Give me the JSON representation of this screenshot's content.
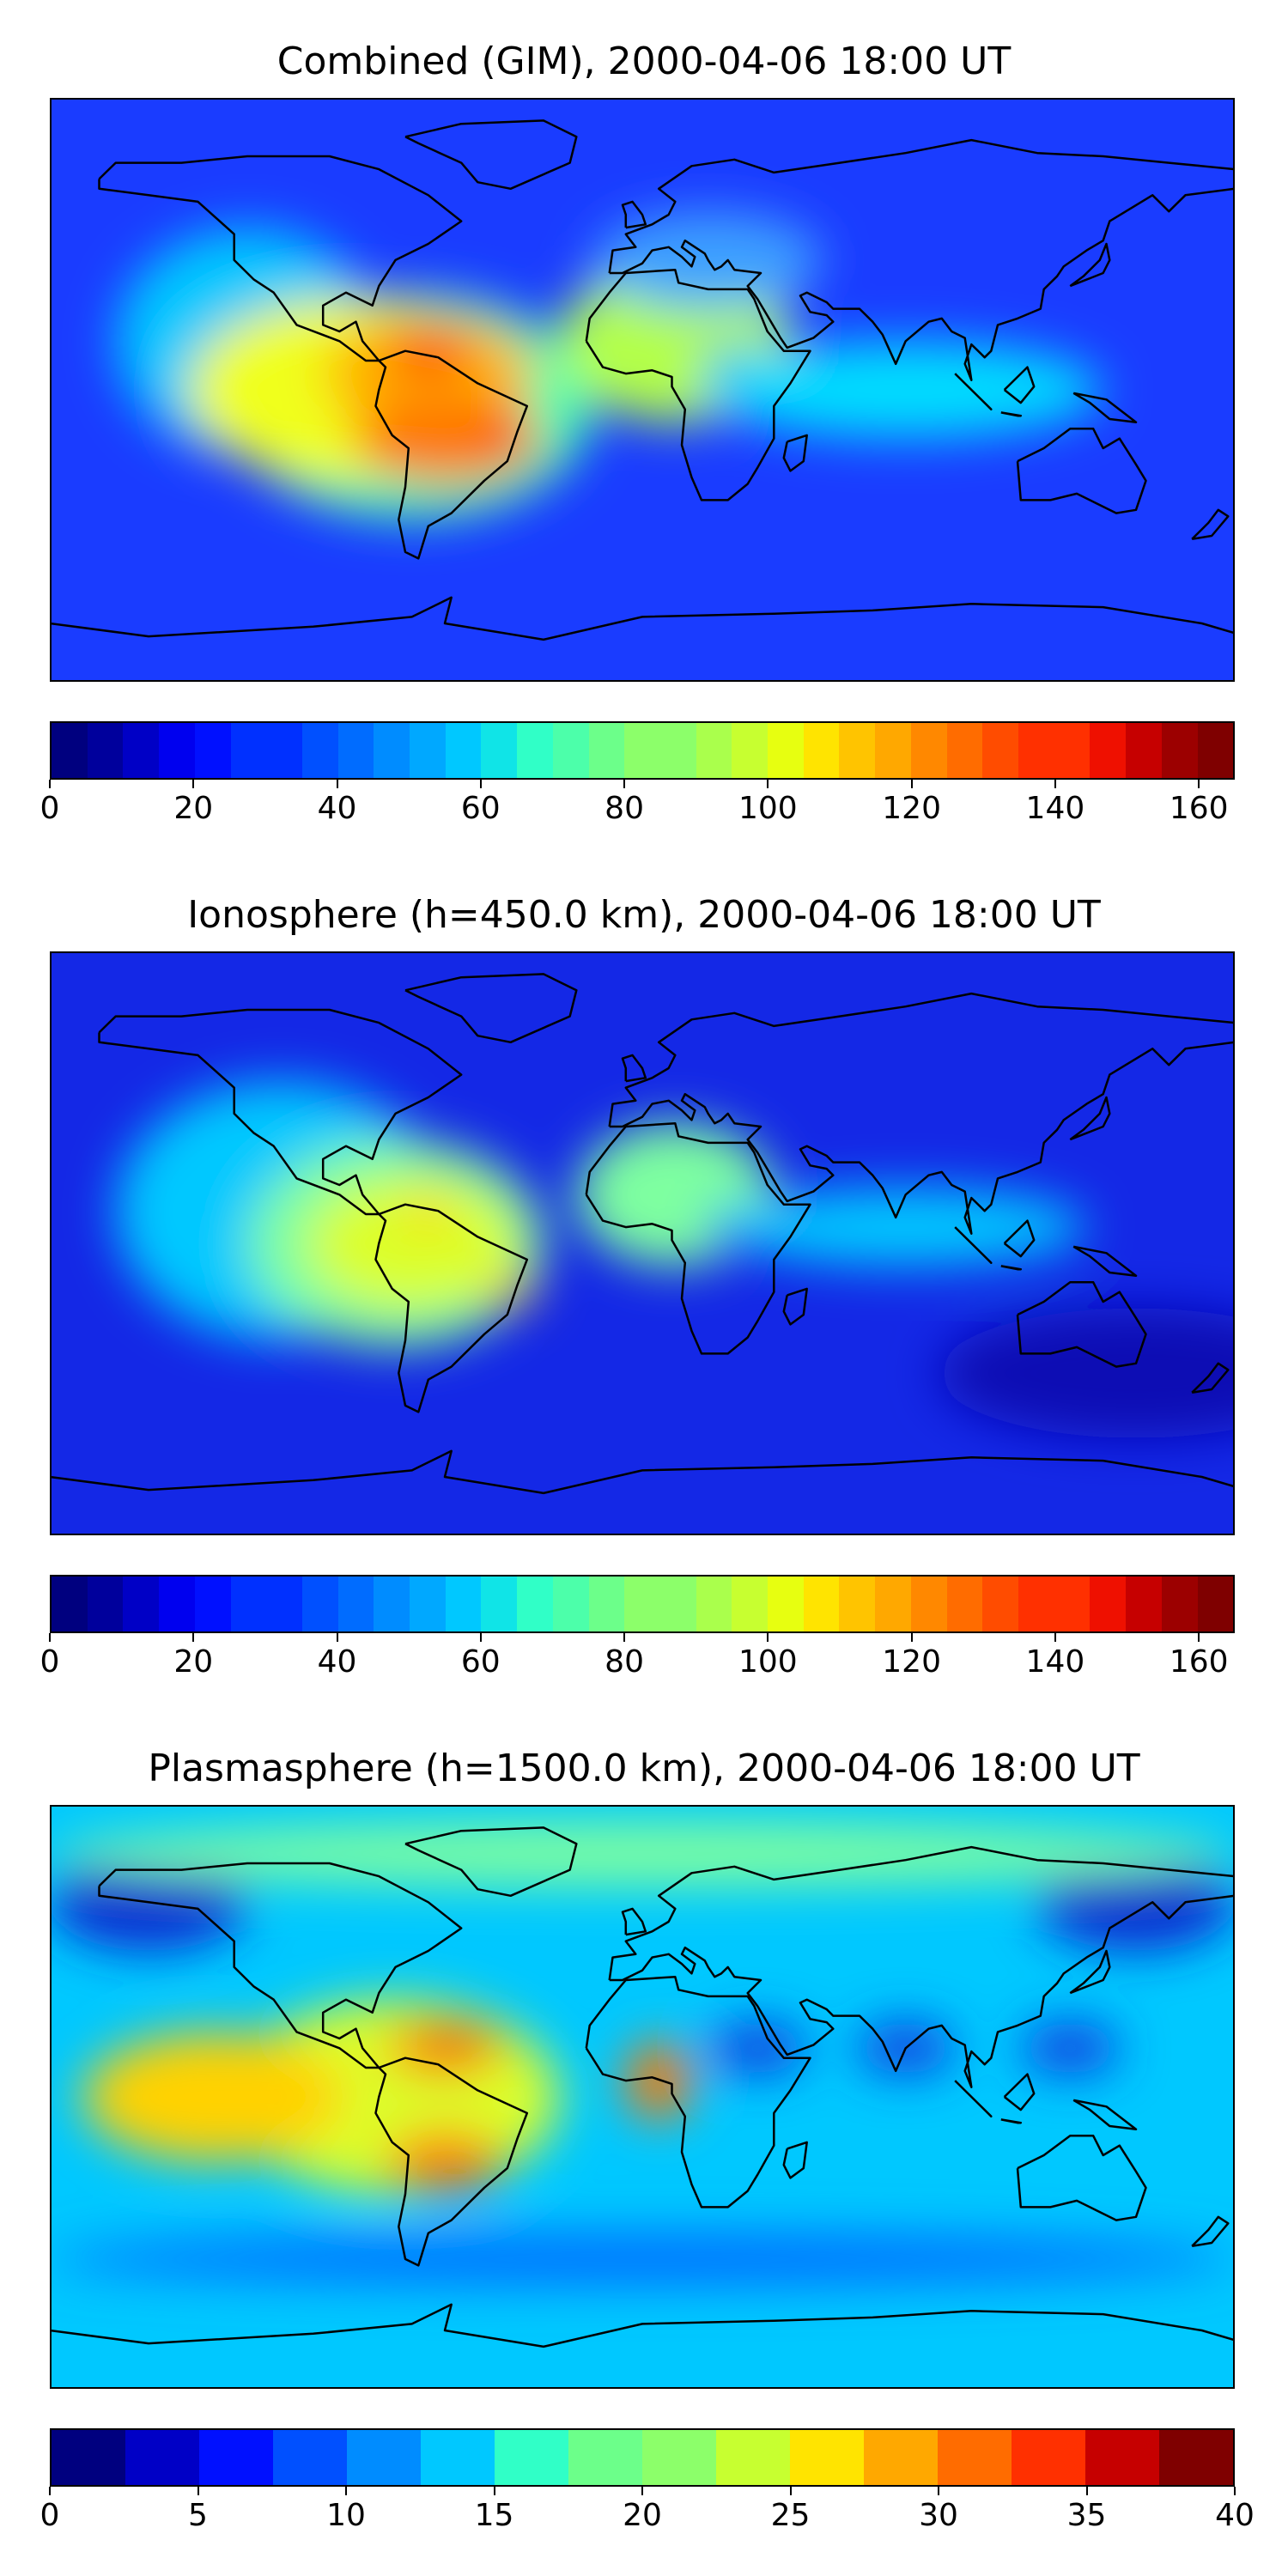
{
  "panels": [
    {
      "title": "Combined (GIM), 2000-04-06 18:00 UT",
      "colorbar": {
        "min": 0,
        "max": 165,
        "step": 5,
        "ticks": [
          "0",
          "20",
          "40",
          "60",
          "80",
          "100",
          "120",
          "140",
          "160"
        ],
        "tick_values": [
          0,
          20,
          40,
          60,
          80,
          100,
          120,
          140,
          160
        ]
      },
      "background_color": "#1a3cff",
      "blobs": [
        {
          "lon": -120,
          "lat": 15,
          "rx": 40,
          "ry": 35,
          "color": "#00c8ff"
        },
        {
          "lon": -70,
          "lat": -5,
          "rx": 55,
          "ry": 35,
          "color": "#3cffb4"
        },
        {
          "lon": -90,
          "lat": 0,
          "rx": 48,
          "ry": 28,
          "color": "#f0ff1e"
        },
        {
          "lon": -65,
          "lat": 5,
          "rx": 32,
          "ry": 18,
          "color": "#ffb400"
        },
        {
          "lon": -60,
          "lat": -15,
          "rx": 28,
          "ry": 14,
          "color": "#ff7800"
        },
        {
          "lon": -65,
          "lat": 12,
          "rx": 14,
          "ry": 7,
          "color": "#ff4000"
        },
        {
          "lon": -40,
          "lat": -15,
          "rx": 10,
          "ry": 5,
          "color": "#ff4000"
        },
        {
          "lon": 10,
          "lat": 15,
          "rx": 35,
          "ry": 25,
          "color": "#b4ff4a"
        },
        {
          "lon": 30,
          "lat": 5,
          "rx": 12,
          "ry": 8,
          "color": "#0090ff"
        },
        {
          "lon": 80,
          "lat": 0,
          "rx": 60,
          "ry": 15,
          "color": "#00dcff"
        },
        {
          "lon": 20,
          "lat": 40,
          "rx": 35,
          "ry": 15,
          "color": "#3ca0ff"
        }
      ]
    },
    {
      "title": "Ionosphere  (h=450.0 km), 2000-04-06 18:00 UT",
      "colorbar": {
        "min": 0,
        "max": 165,
        "step": 5,
        "ticks": [
          "0",
          "20",
          "40",
          "60",
          "80",
          "100",
          "120",
          "140",
          "160"
        ],
        "tick_values": [
          0,
          20,
          40,
          60,
          80,
          100,
          120,
          140,
          160
        ]
      },
      "background_color": "#1428e6",
      "blobs": [
        {
          "lon": -110,
          "lat": 10,
          "rx": 50,
          "ry": 40,
          "color": "#00c8ff"
        },
        {
          "lon": -75,
          "lat": 0,
          "rx": 45,
          "ry": 32,
          "color": "#7effa0"
        },
        {
          "lon": -70,
          "lat": 0,
          "rx": 32,
          "ry": 20,
          "color": "#dcff2a"
        },
        {
          "lon": -65,
          "lat": 10,
          "rx": 8,
          "ry": 5,
          "color": "#ffd200"
        },
        {
          "lon": -40,
          "lat": -15,
          "rx": 8,
          "ry": 4,
          "color": "#ffb400"
        },
        {
          "lon": 10,
          "lat": 15,
          "rx": 30,
          "ry": 22,
          "color": "#7effa0"
        },
        {
          "lon": 30,
          "lat": 5,
          "rx": 10,
          "ry": 7,
          "color": "#0064ff"
        },
        {
          "lon": 80,
          "lat": 5,
          "rx": 55,
          "ry": 12,
          "color": "#00c8ff"
        },
        {
          "lon": 150,
          "lat": -40,
          "rx": 60,
          "ry": 20,
          "color": "#0a0ab4"
        }
      ]
    },
    {
      "title": "Plasmasphere (h=1500.0 km), 2000-04-06 18:00 UT",
      "colorbar": {
        "min": 0,
        "max": 40,
        "step": 2.5,
        "ticks": [
          "0",
          "5",
          "10",
          "15",
          "20",
          "25",
          "30",
          "35",
          "40"
        ],
        "tick_values": [
          0,
          5,
          10,
          15,
          20,
          25,
          30,
          35,
          40
        ]
      },
      "background_color": "#00c8ff",
      "blobs": [
        {
          "lon": -150,
          "lat": 60,
          "rx": 30,
          "ry": 15,
          "color": "#0a2ad0"
        },
        {
          "lon": 150,
          "lat": 60,
          "rx": 30,
          "ry": 15,
          "color": "#0a2ad0"
        },
        {
          "lon": 0,
          "lat": 75,
          "rx": 180,
          "ry": 10,
          "color": "#7effa0"
        },
        {
          "lon": -75,
          "lat": 0,
          "rx": 50,
          "ry": 30,
          "color": "#dcff2a"
        },
        {
          "lon": -60,
          "lat": 15,
          "rx": 18,
          "ry": 8,
          "color": "#ff7800"
        },
        {
          "lon": -58,
          "lat": 17,
          "rx": 8,
          "ry": 4,
          "color": "#e00000"
        },
        {
          "lon": -60,
          "lat": -20,
          "rx": 18,
          "ry": 9,
          "color": "#ff7800"
        },
        {
          "lon": -130,
          "lat": 0,
          "rx": 40,
          "ry": 20,
          "color": "#ffd200"
        },
        {
          "lon": 5,
          "lat": 5,
          "rx": 10,
          "ry": 12,
          "color": "#ff7800"
        },
        {
          "lon": 35,
          "lat": 15,
          "rx": 15,
          "ry": 8,
          "color": "#1040e0"
        },
        {
          "lon": 80,
          "lat": 15,
          "rx": 15,
          "ry": 8,
          "color": "#1040e0"
        },
        {
          "lon": 130,
          "lat": 15,
          "rx": 15,
          "ry": 8,
          "color": "#1040e0"
        },
        {
          "lon": 0,
          "lat": -50,
          "rx": 180,
          "ry": 8,
          "color": "#0070ff"
        }
      ]
    }
  ],
  "colormap": [
    "#00007f",
    "#00009c",
    "#0000c6",
    "#0000ef",
    "#0010ff",
    "#0030ff",
    "#0050ff",
    "#006cff",
    "#008cff",
    "#00a8ff",
    "#00c8ff",
    "#10e4e7",
    "#30ffc7",
    "#4cffaa",
    "#6cff8a",
    "#8cff6a",
    "#aaff4c",
    "#c7ff30",
    "#e7ff10",
    "#ffe400",
    "#ffc400",
    "#ffa800",
    "#ff8800",
    "#ff6c00",
    "#ff4c00",
    "#ff3000",
    "#ef1000",
    "#c60000",
    "#9c0000",
    "#7f0000"
  ]
}
